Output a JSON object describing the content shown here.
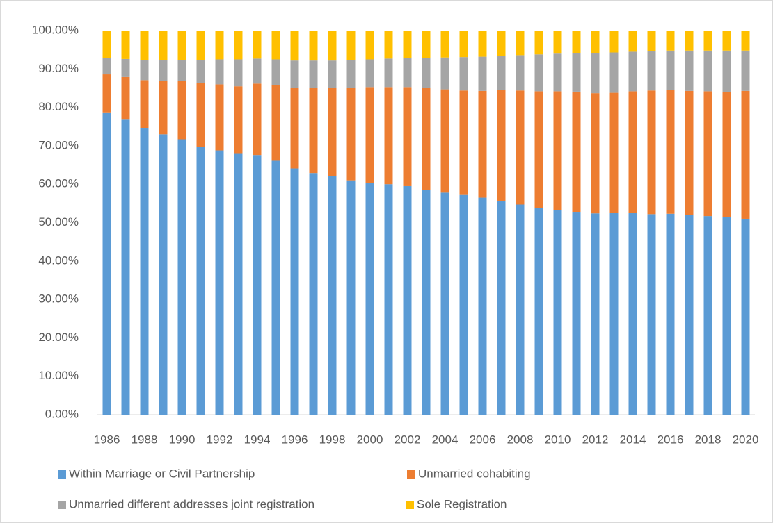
{
  "chart_data": {
    "type": "stacked_bar",
    "categories": [
      "1986",
      null,
      "1988",
      null,
      "1990",
      null,
      "1992",
      null,
      "1994",
      null,
      "1996",
      null,
      "1998",
      null,
      "2000",
      null,
      "2002",
      null,
      "2004",
      null,
      "2006",
      null,
      "2008",
      null,
      "2010",
      null,
      "2012",
      null,
      "2014",
      null,
      "2016",
      null,
      "2018",
      null,
      "2020"
    ],
    "ylim": [
      0,
      100
    ],
    "yticks": [
      {
        "value": 0,
        "label": "0.00%"
      },
      {
        "value": 10,
        "label": "10.00%"
      },
      {
        "value": 20,
        "label": "20.00%"
      },
      {
        "value": 30,
        "label": "30.00%"
      },
      {
        "value": 40,
        "label": "40.00%"
      },
      {
        "value": 50,
        "label": "50.00%"
      },
      {
        "value": 60,
        "label": "60.00%"
      },
      {
        "value": 70,
        "label": "70.00%"
      },
      {
        "value": 80,
        "label": "80.00%"
      },
      {
        "value": 90,
        "label": "90.00%"
      },
      {
        "value": 100,
        "label": "100.00%"
      }
    ],
    "grid": false,
    "legend": "bottom",
    "series": [
      {
        "name": "Within Marriage or Civil Partnership",
        "color": "#5b9bd5",
        "values": [
          78.7,
          76.8,
          74.5,
          73.0,
          71.7,
          69.8,
          68.8,
          67.9,
          67.6,
          66.1,
          64.1,
          62.9,
          62.1,
          61.0,
          60.4,
          60.0,
          59.5,
          58.5,
          57.8,
          57.2,
          56.5,
          55.7,
          54.7,
          53.8,
          53.2,
          52.8,
          52.4,
          52.6,
          52.5,
          52.2,
          52.3,
          51.9,
          51.7,
          51.5,
          51.0
        ]
      },
      {
        "name": "Unmarried cohabiting",
        "color": "#ed7d31",
        "values": [
          9.9,
          11.1,
          12.6,
          13.9,
          15.1,
          16.5,
          17.2,
          17.6,
          18.6,
          19.7,
          20.9,
          22.1,
          23.0,
          24.1,
          24.9,
          25.3,
          25.8,
          26.5,
          26.9,
          27.2,
          27.8,
          28.8,
          29.7,
          30.4,
          31.0,
          31.3,
          31.3,
          31.2,
          31.7,
          32.2,
          32.2,
          32.4,
          32.5,
          32.5,
          33.3
        ]
      },
      {
        "name": "Unmarried different addresses joint registration",
        "color": "#a5a5a5",
        "values": [
          4.2,
          4.7,
          5.2,
          5.4,
          5.5,
          6.0,
          6.5,
          7.0,
          6.5,
          6.7,
          7.2,
          7.2,
          7.1,
          7.2,
          7.2,
          7.4,
          7.5,
          7.8,
          8.3,
          8.7,
          8.9,
          8.9,
          9.2,
          9.6,
          9.8,
          10.0,
          10.5,
          10.5,
          10.3,
          10.2,
          10.3,
          10.5,
          10.6,
          10.8,
          10.5
        ]
      },
      {
        "name": "Sole Registration",
        "color": "#ffc000",
        "values": [
          7.2,
          7.4,
          7.7,
          7.7,
          7.7,
          7.7,
          7.5,
          7.5,
          7.3,
          7.5,
          7.8,
          7.8,
          7.8,
          7.7,
          7.5,
          7.3,
          7.2,
          7.2,
          7.0,
          6.9,
          6.8,
          6.6,
          6.4,
          6.2,
          6.0,
          5.9,
          5.8,
          5.7,
          5.5,
          5.4,
          5.2,
          5.2,
          5.2,
          5.2,
          5.2
        ]
      }
    ]
  }
}
